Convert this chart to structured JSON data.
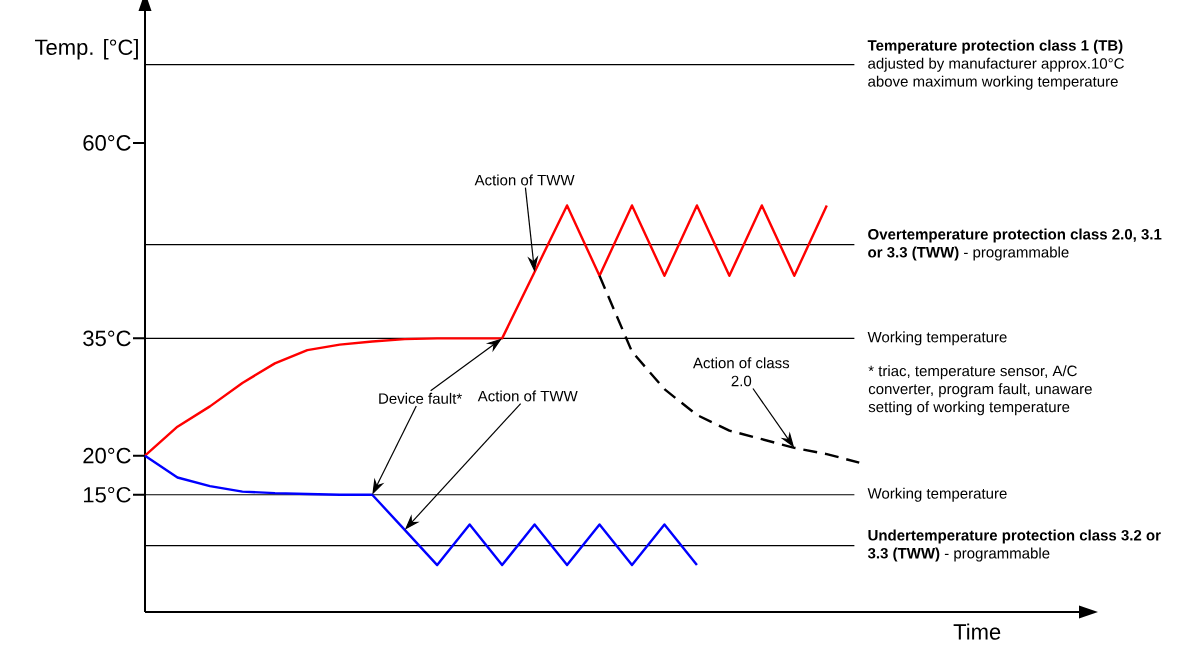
{
  "chart_data": {
    "type": "line",
    "xlabel": "Time",
    "ylabel": "Temp. [°C]",
    "categories": [
      null,
      null,
      null,
      null,
      null,
      null,
      null,
      null,
      null,
      null,
      null,
      null,
      null,
      null,
      null,
      null,
      null,
      null,
      null,
      null,
      null,
      null,
      null,
      null,
      null,
      null,
      null,
      null,
      null
    ],
    "ylim": [
      0,
      77
    ],
    "yticks": [
      {
        "value": 60,
        "label": "60°C"
      },
      {
        "value": 35,
        "label": "35°C"
      },
      {
        "value": 20,
        "label": "20°C"
      },
      {
        "value": 15,
        "label": "15°C"
      }
    ],
    "tick_labels": "y",
    "series": [
      {
        "color": "#ff0000",
        "values": [
          20,
          23.7,
          26.3,
          29.3,
          31.8,
          33.5,
          34.2,
          34.6,
          34.9,
          35,
          35,
          35,
          43.5,
          52,
          43,
          52,
          43,
          52,
          43,
          52,
          43,
          52,
          null,
          null,
          null,
          null,
          null,
          null,
          null
        ]
      },
      {
        "color": "#0000ff",
        "values": [
          20,
          17.2,
          16.1,
          15.4,
          15.2,
          15.1,
          15,
          15,
          10.5,
          6,
          11.2,
          6,
          11.2,
          6,
          11.2,
          6,
          11.2,
          6,
          null,
          null,
          null,
          null,
          null,
          null,
          null,
          null,
          null,
          null,
          null
        ]
      },
      {
        "color": "#000000",
        "line_style": "dashed",
        "values": [
          null,
          null,
          null,
          null,
          null,
          null,
          null,
          null,
          null,
          null,
          null,
          null,
          null,
          null,
          43,
          33.3,
          28.5,
          25.2,
          23.2,
          22.1,
          21,
          20.2,
          19.1,
          null,
          null,
          null,
          null,
          null,
          null
        ]
      }
    ],
    "ref_lines": [
      {
        "axis": "y",
        "value": 70,
        "label": "**Temperature protection class 1 (TB)** adjusted by manufacturer approx.10°C above maximum working temperature"
      },
      {
        "axis": "y",
        "value": 47,
        "label": "**Overtemperature protection class 2.0, 3.1 or 3.3 (TWW)** - programmable"
      },
      {
        "axis": "y",
        "value": 35,
        "label": "Working temperature"
      },
      {
        "axis": "y",
        "value": 15,
        "label": "Working temperature"
      },
      {
        "axis": "y",
        "value": 8.5,
        "label": "**Undertemperature protection class 3.2 or 3.3 (TWW)** - programmable"
      }
    ],
    "annotations": [
      "Action of TWW",
      "Device fault*",
      "Action of TWW",
      "Action of class 2.0",
      "* triac, temperature sensor, A/C converter, program fault, unaware setting of working temperature"
    ]
  }
}
